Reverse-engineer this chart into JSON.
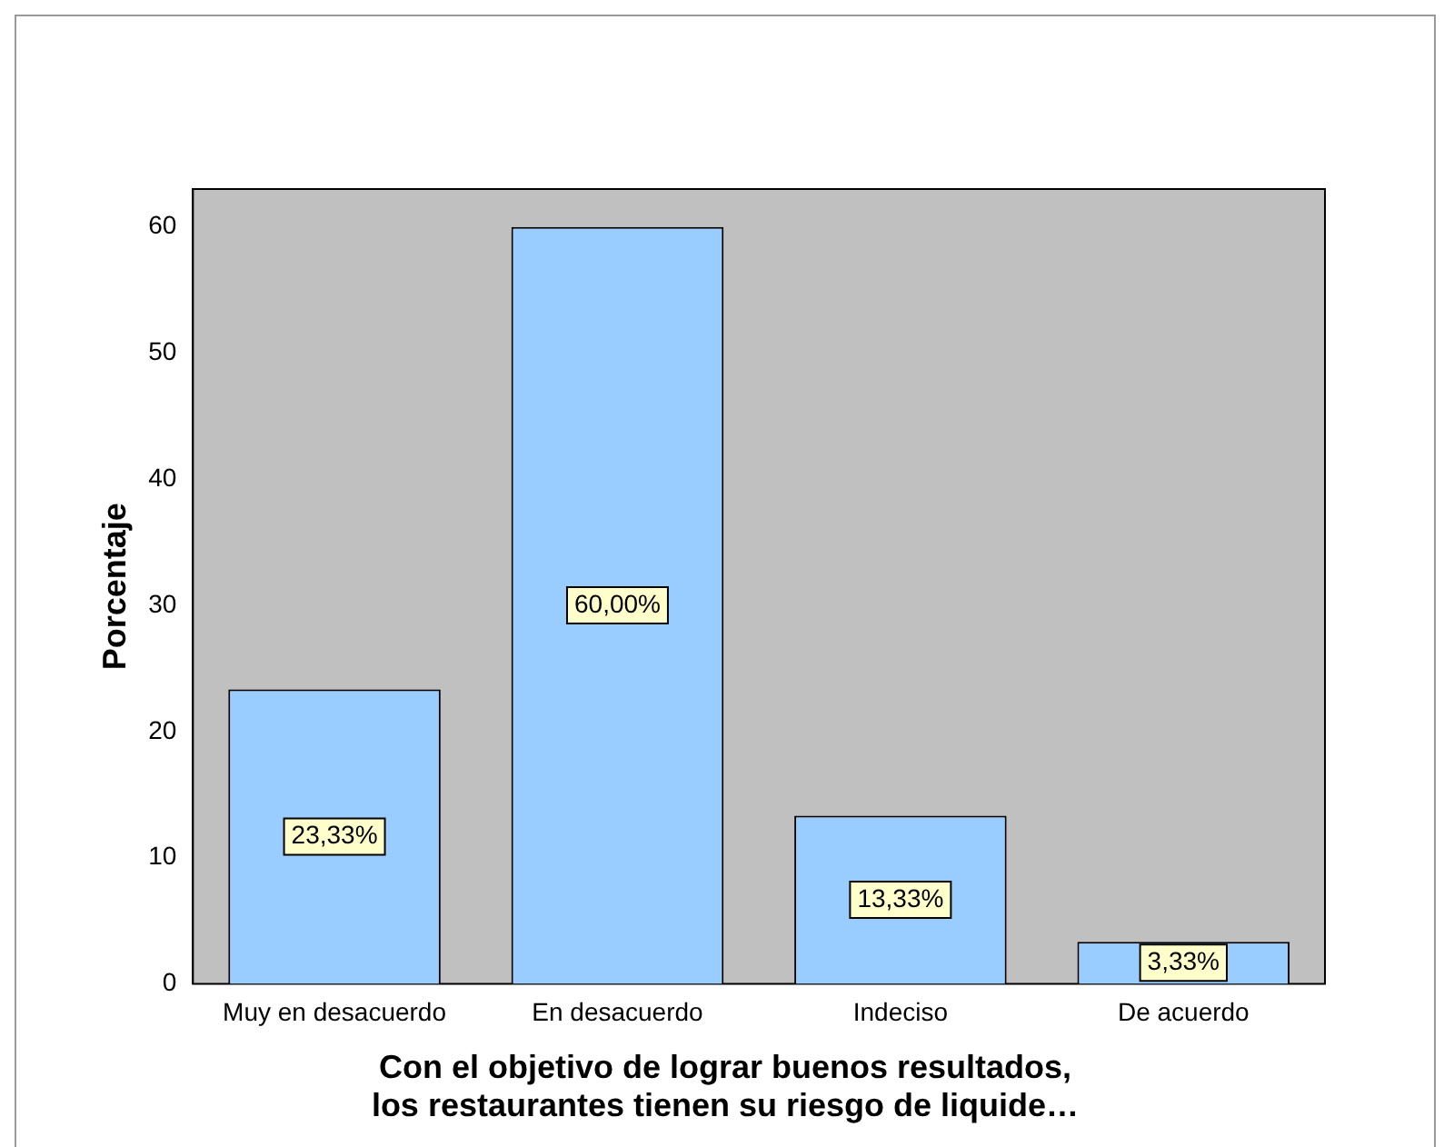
{
  "chart_data": {
    "type": "bar",
    "xlabel": "Con el objetivo de lograr buenos resultados,\nlos restaurantes tienen su riesgo de liquide…",
    "ylabel": "Porcentaje",
    "categories": [
      "Muy en desacuerdo",
      "En desacuerdo",
      "Indeciso",
      "De acuerdo"
    ],
    "values": [
      23.33,
      60,
      13.33,
      3.33
    ],
    "color": "#99ccff",
    "value_labels": [
      "23,33%",
      "60,00%",
      "13,33%",
      "3,33%"
    ],
    "ylim": [
      0,
      63
    ],
    "yticks": [
      0,
      10,
      20,
      30,
      40,
      50,
      60
    ],
    "grid": false,
    "legend": false
  }
}
